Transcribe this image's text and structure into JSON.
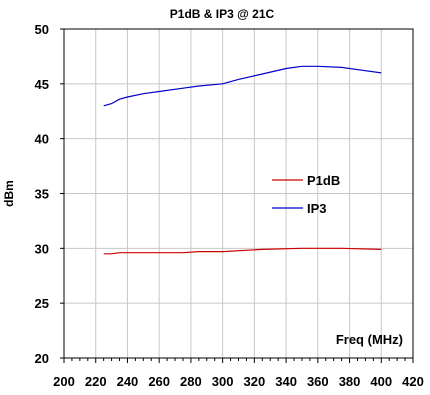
{
  "chart_data": {
    "type": "line",
    "title": "P1dB & IP3 @ 21C",
    "xlabel": "",
    "ylabel": "dBm",
    "annotation": "Freq (MHz)",
    "xlim": [
      200,
      420
    ],
    "ylim": [
      20,
      50
    ],
    "x_ticks": [
      200,
      220,
      240,
      260,
      280,
      300,
      320,
      340,
      360,
      380,
      400,
      420
    ],
    "y_ticks": [
      20,
      25,
      30,
      35,
      40,
      45,
      50
    ],
    "grid": true,
    "legend_position": "right-middle",
    "series": [
      {
        "name": "P1dB",
        "color": "#cc0000",
        "x": [
          225,
          230,
          235,
          240,
          250,
          260,
          275,
          285,
          300,
          325,
          350,
          375,
          400
        ],
        "y": [
          29.5,
          29.5,
          29.6,
          29.6,
          29.6,
          29.6,
          29.6,
          29.7,
          29.7,
          29.9,
          30.0,
          30.0,
          29.9
        ]
      },
      {
        "name": "IP3",
        "color": "#0000cc",
        "x": [
          225,
          230,
          235,
          240,
          250,
          260,
          275,
          285,
          300,
          310,
          325,
          340,
          350,
          360,
          375,
          390,
          400
        ],
        "y": [
          43.0,
          43.2,
          43.6,
          43.8,
          44.1,
          44.3,
          44.6,
          44.8,
          45.0,
          45.4,
          45.9,
          46.4,
          46.6,
          46.6,
          46.5,
          46.2,
          46.0
        ]
      }
    ]
  }
}
